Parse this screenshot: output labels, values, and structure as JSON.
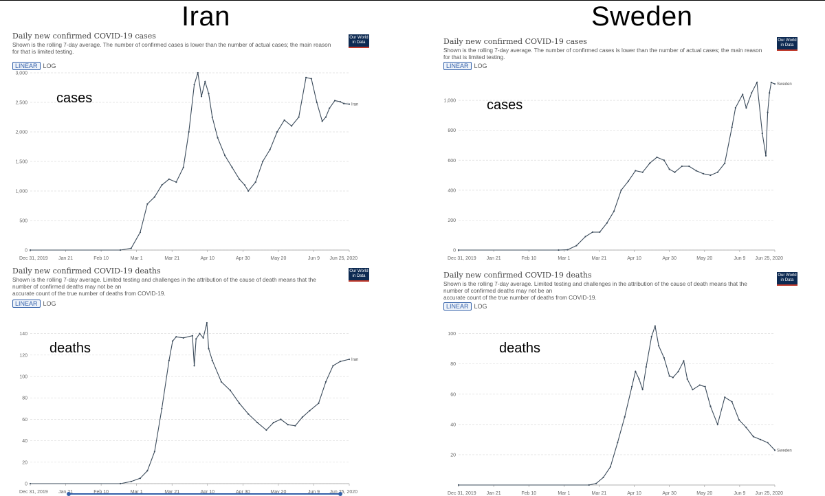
{
  "header": {
    "left_title": "Iran",
    "right_title": "Sweden"
  },
  "panels": [
    {
      "id": "iran_cases",
      "title": "Daily new confirmed COVID-19 cases",
      "subtitle_lines": [
        "Shown is the rolling 7-day average. The number of confirmed cases is lower than the number of actual cases; the main reason",
        "for that is limited testing."
      ],
      "scale": {
        "linear": "LINEAR",
        "log": "LOG"
      },
      "logo": [
        "Our World",
        "in Data"
      ],
      "annotation": "cases",
      "end_label": "Iran"
    },
    {
      "id": "iran_deaths",
      "title": "Daily new confirmed COVID-19 deaths",
      "subtitle_lines": [
        "Shown is the rolling 7-day average. Limited testing and challenges in the attribution of the cause of death means that the",
        "number of confirmed deaths may not be an",
        "accurate count of the true number of deaths from COVID-19."
      ],
      "scale": {
        "linear": "LINEAR",
        "log": "LOG"
      },
      "logo": [
        "Our World",
        "in Data"
      ],
      "annotation": "deaths",
      "end_label": "Iran"
    },
    {
      "id": "sweden_cases",
      "title": "Daily new confirmed COVID-19 cases",
      "subtitle_lines": [
        "Shown is the rolling 7-day average. The number of confirmed cases is lower than the number of actual cases; the main reason",
        "for that is limited testing."
      ],
      "scale": {
        "linear": "LINEAR",
        "log": "LOG"
      },
      "logo": [
        "Our World",
        "in Data"
      ],
      "annotation": "cases",
      "end_label": "Sweden"
    },
    {
      "id": "sweden_deaths",
      "title": "Daily new confirmed COVID-19 deaths",
      "subtitle_lines": [
        "Shown is the rolling 7-day average. Limited testing and challenges in the attribution of the cause of death means that the",
        "number of confirmed deaths may not be an",
        "accurate count of the true number of deaths from COVID-19."
      ],
      "scale": {
        "linear": "LINEAR",
        "log": "LOG"
      },
      "logo": [
        "Our World",
        "in Data"
      ],
      "annotation": "deaths",
      "end_label": "Sweden"
    }
  ],
  "chart_data": [
    {
      "type": "line",
      "title": "Daily new confirmed COVID-19 cases",
      "series_name": "Iran",
      "x_ticks": [
        "Dec 31, 2019",
        "Jan 21",
        "Feb 10",
        "Mar 1",
        "Mar 21",
        "Apr 10",
        "Apr 30",
        "May 20",
        "Jun 9",
        "Jun 25, 2020"
      ],
      "y_ticks": [
        "0",
        "500",
        "1,000",
        "1,500",
        "2,000",
        "2,500",
        "3,000"
      ],
      "ylim": [
        0,
        3000
      ],
      "grid": true,
      "x": [
        "2019-12-31",
        "2020-02-19",
        "2020-02-25",
        "2020-03-01",
        "2020-03-05",
        "2020-03-09",
        "2020-03-13",
        "2020-03-17",
        "2020-03-21",
        "2020-03-25",
        "2020-03-28",
        "2020-03-31",
        "2020-04-02",
        "2020-04-04",
        "2020-04-06",
        "2020-04-08",
        "2020-04-10",
        "2020-04-13",
        "2020-04-17",
        "2020-04-21",
        "2020-04-25",
        "2020-04-28",
        "2020-04-30",
        "2020-05-04",
        "2020-05-08",
        "2020-05-12",
        "2020-05-16",
        "2020-05-20",
        "2020-05-24",
        "2020-05-28",
        "2020-06-01",
        "2020-06-04",
        "2020-06-07",
        "2020-06-10",
        "2020-06-12",
        "2020-06-14",
        "2020-06-17",
        "2020-06-20",
        "2020-06-22",
        "2020-06-25"
      ],
      "values": [
        0,
        0,
        30,
        300,
        780,
        900,
        1100,
        1200,
        1150,
        1400,
        2000,
        2800,
        3000,
        2600,
        2850,
        2650,
        2250,
        1900,
        1600,
        1400,
        1200,
        1100,
        1000,
        1150,
        1500,
        1700,
        2000,
        2200,
        2100,
        2250,
        2920,
        2900,
        2500,
        2180,
        2250,
        2400,
        2530,
        2510,
        2480,
        2470
      ]
    },
    {
      "type": "line",
      "title": "Daily new confirmed COVID-19 deaths",
      "series_name": "Iran",
      "x_ticks": [
        "Dec 31, 2019",
        "Jan 21",
        "Feb 10",
        "Mar 1",
        "Mar 21",
        "Apr 10",
        "Apr 30",
        "May 20",
        "Jun 9",
        "Jun 25, 2020"
      ],
      "y_ticks": [
        "0",
        "20",
        "40",
        "60",
        "80",
        "100",
        "120",
        "140"
      ],
      "ylim": [
        0,
        150
      ],
      "grid": true,
      "x": [
        "2019-12-31",
        "2020-02-19",
        "2020-02-25",
        "2020-03-01",
        "2020-03-05",
        "2020-03-09",
        "2020-03-13",
        "2020-03-17",
        "2020-03-19",
        "2020-03-21",
        "2020-03-25",
        "2020-03-30",
        "2020-03-31",
        "2020-04-01",
        "2020-04-03",
        "2020-04-05",
        "2020-04-07",
        "2020-04-08",
        "2020-04-10",
        "2020-04-15",
        "2020-04-20",
        "2020-04-25",
        "2020-04-30",
        "2020-05-05",
        "2020-05-10",
        "2020-05-14",
        "2020-05-18",
        "2020-05-22",
        "2020-05-26",
        "2020-05-30",
        "2020-06-03",
        "2020-06-08",
        "2020-06-12",
        "2020-06-16",
        "2020-06-20",
        "2020-06-25"
      ],
      "values": [
        0,
        0,
        2,
        5,
        12,
        30,
        70,
        115,
        133,
        137,
        136,
        138,
        110,
        135,
        140,
        136,
        150,
        126,
        115,
        95,
        87,
        75,
        65,
        57,
        50,
        57,
        60,
        55,
        54,
        62,
        68,
        75,
        95,
        110,
        114,
        116
      ]
    },
    {
      "type": "line",
      "title": "Daily new confirmed COVID-19 cases",
      "series_name": "Sweden",
      "x_ticks": [
        "Dec 31, 2019",
        "Jan 21",
        "Feb 10",
        "Mar 1",
        "Mar 21",
        "Apr 10",
        "Apr 30",
        "May 20",
        "Jun 9",
        "Jun 25, 2020"
      ],
      "y_ticks": [
        "0",
        "200",
        "400",
        "600",
        "800",
        "1,000"
      ],
      "ylim": [
        0,
        1120
      ],
      "grid": true,
      "x": [
        "2019-12-31",
        "2020-02-25",
        "2020-03-01",
        "2020-03-06",
        "2020-03-11",
        "2020-03-15",
        "2020-03-19",
        "2020-03-23",
        "2020-03-27",
        "2020-03-31",
        "2020-04-04",
        "2020-04-08",
        "2020-04-12",
        "2020-04-16",
        "2020-04-20",
        "2020-04-24",
        "2020-04-27",
        "2020-04-30",
        "2020-05-04",
        "2020-05-08",
        "2020-05-12",
        "2020-05-16",
        "2020-05-20",
        "2020-05-24",
        "2020-05-28",
        "2020-06-01",
        "2020-06-03",
        "2020-06-07",
        "2020-06-09",
        "2020-06-12",
        "2020-06-15",
        "2020-06-18",
        "2020-06-20",
        "2020-06-21",
        "2020-06-22",
        "2020-06-23",
        "2020-06-25"
      ],
      "values": [
        0,
        0,
        2,
        30,
        90,
        120,
        120,
        180,
        260,
        400,
        460,
        530,
        520,
        580,
        620,
        600,
        540,
        520,
        560,
        560,
        530,
        510,
        500,
        520,
        580,
        820,
        950,
        1040,
        950,
        1050,
        1120,
        780,
        630,
        920,
        1050,
        1120,
        1110
      ]
    },
    {
      "type": "line",
      "title": "Daily new confirmed COVID-19 deaths",
      "series_name": "Sweden",
      "x_ticks": [
        "Dec 31, 2019",
        "Jan 21",
        "Feb 10",
        "Mar 1",
        "Mar 21",
        "Apr 10",
        "Apr 30",
        "May 20",
        "Jun 9",
        "Jun 25, 2020"
      ],
      "y_ticks": [
        "20",
        "40",
        "60",
        "80",
        "100"
      ],
      "ylim": [
        0,
        108
      ],
      "grid": true,
      "x": [
        "2019-12-31",
        "2020-03-13",
        "2020-03-17",
        "2020-03-21",
        "2020-03-25",
        "2020-03-29",
        "2020-04-02",
        "2020-04-06",
        "2020-04-08",
        "2020-04-10",
        "2020-04-12",
        "2020-04-14",
        "2020-04-17",
        "2020-04-19",
        "2020-04-21",
        "2020-04-24",
        "2020-04-27",
        "2020-04-29",
        "2020-05-02",
        "2020-05-05",
        "2020-05-07",
        "2020-05-10",
        "2020-05-14",
        "2020-05-17",
        "2020-05-20",
        "2020-05-24",
        "2020-05-28",
        "2020-06-01",
        "2020-06-05",
        "2020-06-09",
        "2020-06-13",
        "2020-06-17",
        "2020-06-21",
        "2020-06-25"
      ],
      "values": [
        0,
        0,
        1,
        5,
        12,
        28,
        45,
        65,
        75,
        70,
        63,
        78,
        98,
        105,
        92,
        84,
        72,
        71,
        75,
        82,
        70,
        63,
        66,
        65,
        52,
        40,
        58,
        55,
        43,
        38,
        32,
        30,
        28,
        23
      ]
    }
  ]
}
